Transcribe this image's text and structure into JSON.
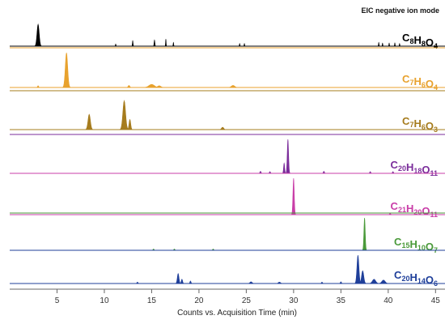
{
  "chart_data": {
    "type": "area",
    "title": "",
    "annotation": "EIC negative ion mode",
    "xlabel": "Counts vs. Acquisition Time (min)",
    "ylabel": "",
    "xlim": [
      0,
      46
    ],
    "xticks": [
      5,
      10,
      15,
      20,
      25,
      30,
      35,
      40,
      45
    ],
    "grid": false,
    "panels": [
      {
        "formula": {
          "parts": [
            [
              "C",
              "8"
            ],
            [
              "H",
              "8"
            ],
            [
              "O",
              "4"
            ]
          ],
          "text": "C8H8O4"
        },
        "color": "#000000",
        "peaks": [
          [
            3.0,
            1.0,
            0.2
          ],
          [
            11.2,
            0.1,
            0.05
          ],
          [
            13.0,
            0.25,
            0.06
          ],
          [
            15.3,
            0.28,
            0.07
          ],
          [
            16.5,
            0.32,
            0.05
          ],
          [
            17.3,
            0.17,
            0.05
          ],
          [
            24.3,
            0.12,
            0.05
          ],
          [
            24.8,
            0.12,
            0.05
          ],
          [
            39.0,
            0.17,
            0.05
          ],
          [
            39.4,
            0.14,
            0.05
          ],
          [
            40.1,
            0.14,
            0.05
          ],
          [
            40.7,
            0.15,
            0.05
          ],
          [
            41.2,
            0.12,
            0.05
          ]
        ]
      },
      {
        "formula": {
          "parts": [
            [
              "C",
              "7"
            ],
            [
              "H",
              "6"
            ],
            [
              "O",
              "4"
            ]
          ],
          "text": "C7H6O4"
        },
        "color": "#e8a22e",
        "peaks": [
          [
            6.0,
            1.0,
            0.22
          ],
          [
            3.0,
            0.05,
            0.1
          ],
          [
            12.6,
            0.06,
            0.15
          ],
          [
            15.0,
            0.09,
            0.5
          ],
          [
            15.8,
            0.05,
            0.3
          ],
          [
            23.6,
            0.06,
            0.3
          ]
        ]
      },
      {
        "formula": {
          "parts": [
            [
              "C",
              "7"
            ],
            [
              "H",
              "6"
            ],
            [
              "O",
              "3"
            ]
          ],
          "text": "C7H6O3"
        },
        "color": "#a67c1e",
        "peaks": [
          [
            8.4,
            0.45,
            0.22
          ],
          [
            12.1,
            0.85,
            0.25
          ],
          [
            12.7,
            0.3,
            0.15
          ],
          [
            22.5,
            0.07,
            0.2
          ]
        ]
      },
      {
        "formula": {
          "parts": [
            [
              "C",
              "20"
            ],
            [
              "H",
              "18"
            ],
            [
              "O",
              "11"
            ]
          ],
          "text": "C20H18O11"
        },
        "color": "#7b2d9b",
        "peaks": [
          [
            29.0,
            0.3,
            0.1
          ],
          [
            29.4,
            1.0,
            0.12
          ],
          [
            26.5,
            0.06,
            0.1
          ],
          [
            27.5,
            0.05,
            0.1
          ],
          [
            33.2,
            0.06,
            0.1
          ],
          [
            38.1,
            0.05,
            0.1
          ],
          [
            40.5,
            0.05,
            0.1
          ]
        ]
      },
      {
        "formula": {
          "parts": [
            [
              "C",
              "21"
            ],
            [
              "H",
              "20"
            ],
            [
              "O",
              "11"
            ]
          ],
          "text": "C21H20O11"
        },
        "color": "#c93ea8",
        "peaks": [
          [
            30.0,
            1.0,
            0.12
          ],
          [
            40.2,
            0.04,
            0.1
          ]
        ]
      },
      {
        "formula": {
          "parts": [
            [
              "C",
              "15"
            ],
            [
              "H",
              "10"
            ],
            [
              "O",
              "7"
            ]
          ],
          "text": "C15H10O7"
        },
        "color": "#4a9a3a",
        "peaks": [
          [
            37.5,
            1.0,
            0.12
          ],
          [
            15.2,
            0.04,
            0.1
          ],
          [
            17.4,
            0.04,
            0.1
          ],
          [
            21.5,
            0.04,
            0.1
          ]
        ]
      },
      {
        "formula": {
          "parts": [
            [
              "C",
              "20"
            ],
            [
              "H",
              "14"
            ],
            [
              "O",
              "6"
            ]
          ],
          "text": "C20H14O6"
        },
        "color": "#1f3f9a",
        "peaks": [
          [
            36.8,
            1.0,
            0.18
          ],
          [
            37.3,
            0.45,
            0.2
          ],
          [
            17.8,
            0.35,
            0.15
          ],
          [
            18.2,
            0.15,
            0.12
          ],
          [
            19.1,
            0.09,
            0.1
          ],
          [
            38.5,
            0.15,
            0.3
          ],
          [
            39.5,
            0.12,
            0.3
          ],
          [
            13.5,
            0.05,
            0.1
          ],
          [
            25.5,
            0.06,
            0.2
          ],
          [
            28.5,
            0.05,
            0.2
          ],
          [
            33.0,
            0.05,
            0.1
          ],
          [
            35.0,
            0.06,
            0.1
          ]
        ]
      }
    ]
  }
}
